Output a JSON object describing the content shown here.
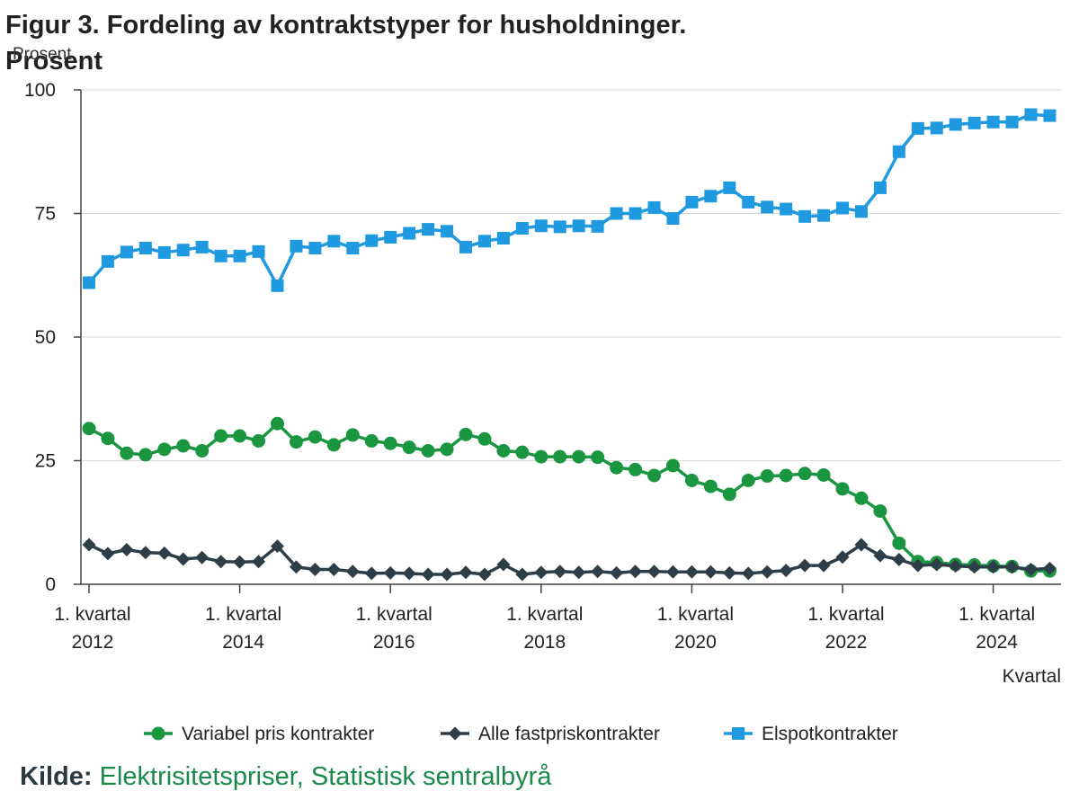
{
  "title": "Figur 3. Fordeling av kontraktstyper for husholdninger. Prosent",
  "source": {
    "label": "Kilde:",
    "link_text": "Elektrisitetspriser, Statistisk sentralbyrå"
  },
  "chart_data": {
    "type": "line",
    "title": "Figur 3. Fordeling av kontraktstyper for husholdninger. Prosent",
    "ylabel": "Prosent",
    "xlabel": "Kvartal",
    "ylim": [
      0,
      100
    ],
    "yticks": [
      0,
      25,
      50,
      75,
      100
    ],
    "grid": true,
    "legend": "bottom",
    "x_tick_labels": [
      {
        "line1": "1. kvartal",
        "line2": "2012",
        "index": 0
      },
      {
        "line1": "1. kvartal",
        "line2": "2014",
        "index": 8
      },
      {
        "line1": "1. kvartal",
        "line2": "2016",
        "index": 16
      },
      {
        "line1": "1. kvartal",
        "line2": "2018",
        "index": 24
      },
      {
        "line1": "1. kvartal",
        "line2": "2020",
        "index": 32
      },
      {
        "line1": "1. kvartal",
        "line2": "2022",
        "index": 40
      },
      {
        "line1": "1. kvartal",
        "line2": "2024",
        "index": 48
      }
    ],
    "x": [
      "2012K1",
      "2012K2",
      "2012K3",
      "2012K4",
      "2013K1",
      "2013K2",
      "2013K3",
      "2013K4",
      "2014K1",
      "2014K2",
      "2014K3",
      "2014K4",
      "2015K1",
      "2015K2",
      "2015K3",
      "2015K4",
      "2016K1",
      "2016K2",
      "2016K3",
      "2016K4",
      "2017K1",
      "2017K2",
      "2017K3",
      "2017K4",
      "2018K1",
      "2018K2",
      "2018K3",
      "2018K4",
      "2019K1",
      "2019K2",
      "2019K3",
      "2019K4",
      "2020K1",
      "2020K2",
      "2020K3",
      "2020K4",
      "2021K1",
      "2021K2",
      "2021K3",
      "2021K4",
      "2022K1",
      "2022K2",
      "2022K3",
      "2022K4",
      "2023K1",
      "2023K2",
      "2023K3",
      "2023K4",
      "2024K1",
      "2024K2",
      "2024K3",
      "2024K4"
    ],
    "series": [
      {
        "name": "Variabel pris kontrakter",
        "color": "#1a9641",
        "marker": "circle",
        "values": [
          31.5,
          29.5,
          26.5,
          26.2,
          27.3,
          28,
          27,
          30,
          30,
          29,
          32.5,
          28.8,
          29.8,
          28.2,
          30.2,
          29,
          28.5,
          27.7,
          27,
          27.3,
          30.3,
          29.4,
          27,
          26.7,
          25.8,
          25.8,
          25.8,
          25.7,
          23.6,
          23.2,
          22,
          24,
          21,
          19.8,
          18.2,
          21,
          21.9,
          22,
          22.4,
          22.1,
          19.3,
          17.4,
          14.8,
          8.3,
          4.6,
          4.4,
          4,
          3.9,
          3.7,
          3.6,
          2.7,
          2.7
        ]
      },
      {
        "name": "Alle fastpriskontrakter",
        "color": "#2d3e48",
        "marker": "diamond",
        "values": [
          8,
          6.2,
          7,
          6.4,
          6.3,
          5.1,
          5.4,
          4.6,
          4.5,
          4.6,
          7.7,
          3.5,
          3,
          3,
          2.6,
          2.2,
          2.3,
          2.2,
          2,
          2,
          2.4,
          2,
          4,
          2,
          2.4,
          2.6,
          2.4,
          2.6,
          2.3,
          2.6,
          2.6,
          2.5,
          2.5,
          2.5,
          2.3,
          2.2,
          2.5,
          2.8,
          3.8,
          3.8,
          5.5,
          8,
          5.8,
          5,
          3.8,
          4,
          3.7,
          3.5,
          3.5,
          3.5,
          3,
          3.2
        ]
      },
      {
        "name": "Elspotkontrakter",
        "color": "#1f9ae0",
        "marker": "square",
        "values": [
          61,
          65.3,
          67.2,
          68,
          67.1,
          67.6,
          68.2,
          66.4,
          66.4,
          67.3,
          60.4,
          68.4,
          68,
          69.4,
          68,
          69.5,
          70.2,
          71,
          71.8,
          71.4,
          68.2,
          69.4,
          70,
          72,
          72.5,
          72.3,
          72.5,
          72.4,
          75,
          75,
          76.2,
          74,
          77.3,
          78.5,
          80.2,
          77.3,
          76.3,
          75.9,
          74.4,
          74.6,
          76.1,
          75.4,
          80.2,
          87.5,
          92.2,
          92.3,
          93,
          93.3,
          93.5,
          93.5,
          95,
          94.8
        ]
      }
    ]
  }
}
